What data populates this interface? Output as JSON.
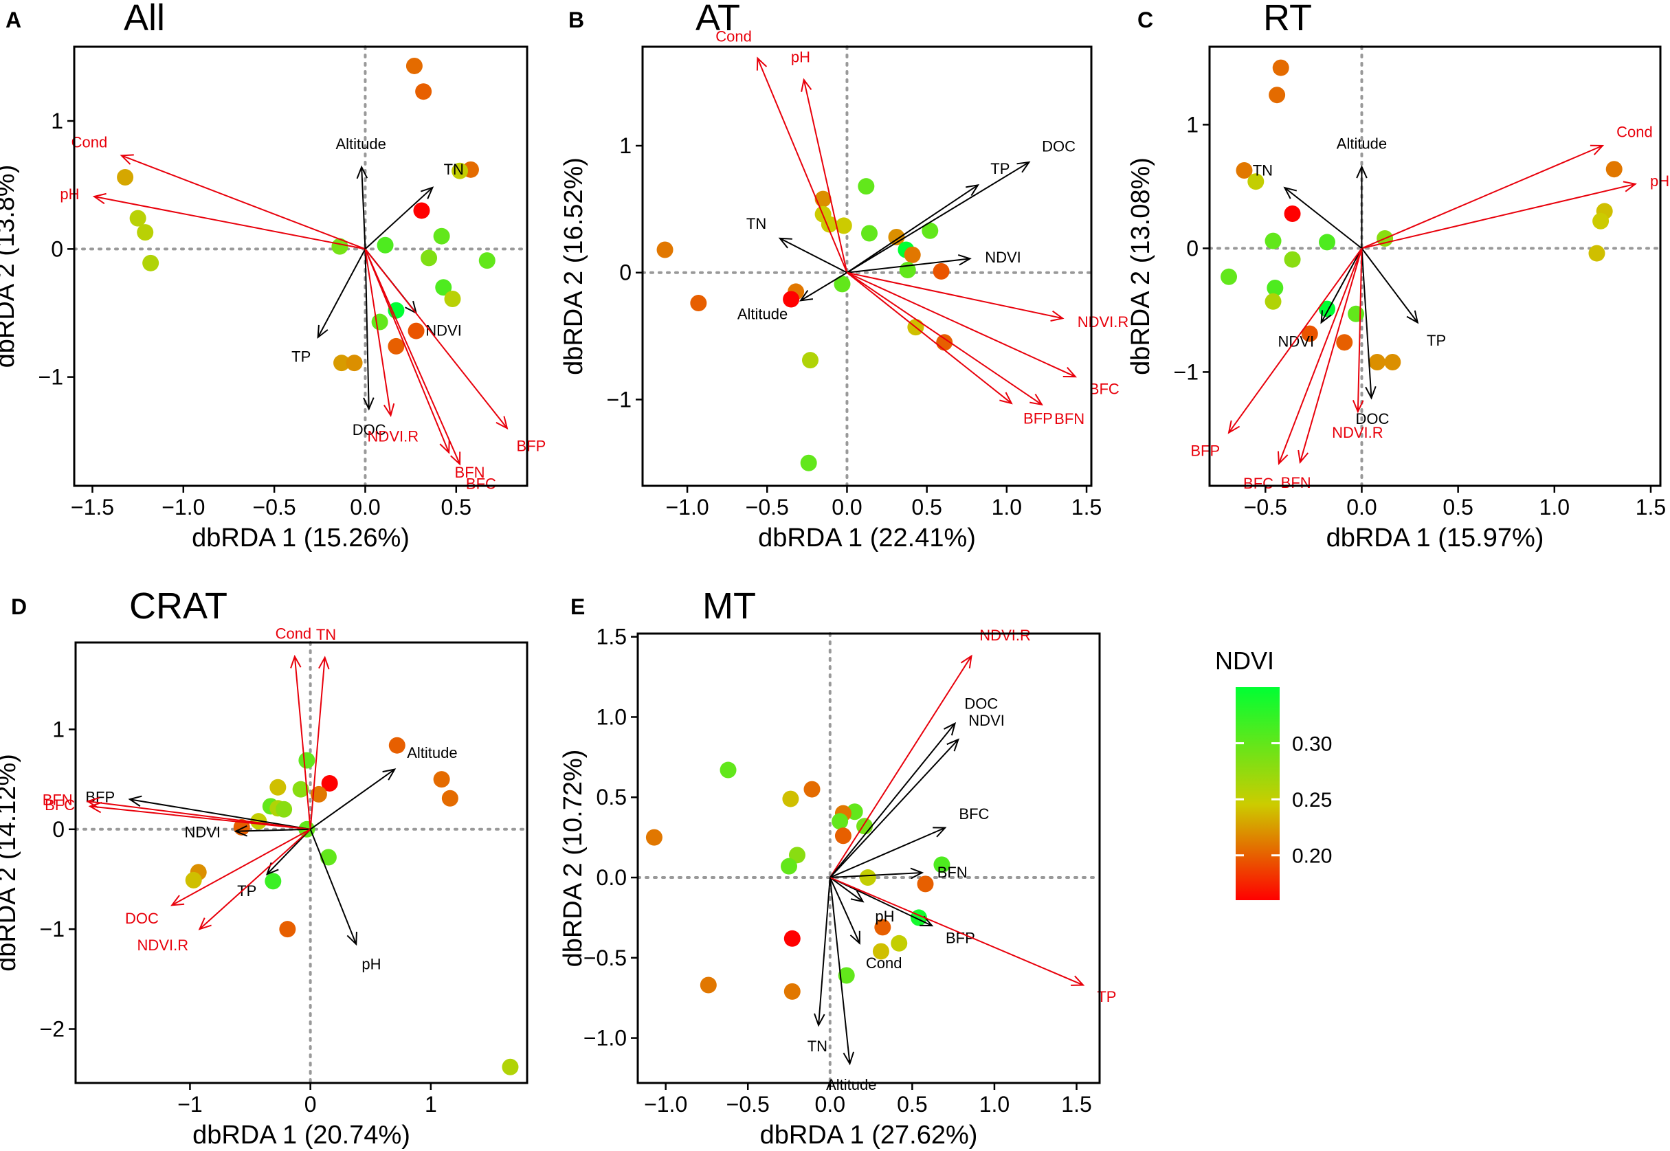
{
  "colorbar": {
    "title": "NDVI",
    "min": 0.16,
    "max": 0.35,
    "ticks": [
      0.2,
      0.25,
      0.3
    ],
    "tick_labels": [
      "0.20",
      "0.25",
      "0.30"
    ],
    "low_color": "#ff0000",
    "mid_color": "#cccc00",
    "high_color": "#00ff33"
  },
  "colors": {
    "env_arrow": "#000000",
    "response_arrow": "#e8000b",
    "frame": "#000000",
    "zero_line": "#999999"
  },
  "chart_data": [
    {
      "panel_letter": "A",
      "title": "All",
      "type": "scatter",
      "xlabel": "dbRDA 1 (15.26%)",
      "ylabel": "dbRDA 2 (13.8%)",
      "xlim": [
        -1.6,
        0.89
      ],
      "ylim": [
        -1.85,
        1.58
      ],
      "xticks": [
        -1.5,
        -1.0,
        -0.5,
        0.0,
        0.5
      ],
      "xtick_labels": [
        "−1.5",
        "−1.0",
        "−0.5",
        "0.0",
        "0.5"
      ],
      "yticks": [
        -1,
        0,
        1
      ],
      "ytick_labels": [
        "−1",
        "0",
        "1"
      ],
      "vectors": [
        {
          "label": "Cond",
          "x": -1.34,
          "y": 0.73,
          "group": "response"
        },
        {
          "label": "pH",
          "x": -1.49,
          "y": 0.41,
          "group": "response"
        },
        {
          "label": "Altitude",
          "x": -0.02,
          "y": 0.64,
          "group": "env"
        },
        {
          "label": "TN",
          "x": 0.37,
          "y": 0.48,
          "group": "env"
        },
        {
          "label": "NDVI",
          "x": 0.28,
          "y": -0.5,
          "group": "env"
        },
        {
          "label": "TP",
          "x": -0.26,
          "y": -0.69,
          "group": "env"
        },
        {
          "label": "DOC",
          "x": 0.02,
          "y": -1.25,
          "group": "env"
        },
        {
          "label": "NDVI.R",
          "x": 0.14,
          "y": -1.3,
          "group": "response"
        },
        {
          "label": "BFP",
          "x": 0.78,
          "y": -1.4,
          "group": "response"
        },
        {
          "label": "BFN",
          "x": 0.46,
          "y": -1.59,
          "group": "response"
        },
        {
          "label": "BFC",
          "x": 0.52,
          "y": -1.68,
          "group": "response"
        }
      ],
      "points": [
        {
          "x": 0.27,
          "y": 1.43,
          "ndvi": 0.205
        },
        {
          "x": 0.32,
          "y": 1.23,
          "ndvi": 0.2
        },
        {
          "x": 0.58,
          "y": 0.62,
          "ndvi": 0.205
        },
        {
          "x": 0.52,
          "y": 0.61,
          "ndvi": 0.25
        },
        {
          "x": -1.32,
          "y": 0.56,
          "ndvi": 0.23
        },
        {
          "x": 0.31,
          "y": 0.3,
          "ndvi": 0.16
        },
        {
          "x": -1.25,
          "y": 0.24,
          "ndvi": 0.255
        },
        {
          "x": -1.21,
          "y": 0.13,
          "ndvi": 0.255
        },
        {
          "x": 0.42,
          "y": 0.1,
          "ndvi": 0.3
        },
        {
          "x": -0.14,
          "y": 0.02,
          "ndvi": 0.29
        },
        {
          "x": 0.11,
          "y": 0.03,
          "ndvi": 0.31
        },
        {
          "x": -1.18,
          "y": -0.11,
          "ndvi": 0.26
        },
        {
          "x": 0.35,
          "y": -0.07,
          "ndvi": 0.285
        },
        {
          "x": 0.67,
          "y": -0.09,
          "ndvi": 0.3
        },
        {
          "x": 0.43,
          "y": -0.3,
          "ndvi": 0.31
        },
        {
          "x": 0.48,
          "y": -0.39,
          "ndvi": 0.255
        },
        {
          "x": 0.17,
          "y": -0.48,
          "ndvi": 0.35
        },
        {
          "x": 0.08,
          "y": -0.57,
          "ndvi": 0.3
        },
        {
          "x": 0.28,
          "y": -0.64,
          "ndvi": 0.195
        },
        {
          "x": 0.17,
          "y": -0.76,
          "ndvi": 0.2
        },
        {
          "x": -0.13,
          "y": -0.89,
          "ndvi": 0.225
        },
        {
          "x": -0.06,
          "y": -0.89,
          "ndvi": 0.22
        }
      ]
    },
    {
      "panel_letter": "B",
      "title": "AT",
      "type": "scatter",
      "xlabel": "dbRDA 1 (22.41%)",
      "ylabel": "dbRDA 2 (16.52%)",
      "xlim": [
        -1.28,
        1.53
      ],
      "ylim": [
        -1.68,
        1.78
      ],
      "xticks": [
        -1.0,
        -0.5,
        0.0,
        0.5,
        1.0,
        1.5
      ],
      "xtick_labels": [
        "−1.0",
        "−0.5",
        "0.0",
        "0.5",
        "1.0",
        "1.5"
      ],
      "yticks": [
        -1,
        0,
        1
      ],
      "ytick_labels": [
        "−1",
        "0",
        "1"
      ],
      "vectors": [
        {
          "label": "Cond",
          "x": -0.56,
          "y": 1.69,
          "group": "response"
        },
        {
          "label": "pH",
          "x": -0.27,
          "y": 1.52,
          "group": "response"
        },
        {
          "label": "DOC",
          "x": 1.14,
          "y": 0.87,
          "group": "env"
        },
        {
          "label": "TP",
          "x": 0.82,
          "y": 0.69,
          "group": "env"
        },
        {
          "label": "TN",
          "x": -0.42,
          "y": 0.27,
          "group": "env"
        },
        {
          "label": "NDVI",
          "x": 0.77,
          "y": 0.11,
          "group": "env"
        },
        {
          "label": "Altitude",
          "x": -0.29,
          "y": -0.22,
          "group": "env"
        },
        {
          "label": "NDVI.R",
          "x": 1.35,
          "y": -0.36,
          "group": "response"
        },
        {
          "label": "BFC",
          "x": 1.43,
          "y": -0.82,
          "group": "response"
        },
        {
          "label": "BFN",
          "x": 1.22,
          "y": -1.04,
          "group": "response"
        },
        {
          "label": "BFP",
          "x": 1.03,
          "y": -1.03,
          "group": "response"
        }
      ],
      "points": [
        {
          "x": 0.12,
          "y": 0.68,
          "ndvi": 0.3
        },
        {
          "x": -0.15,
          "y": 0.58,
          "ndvi": 0.22
        },
        {
          "x": -0.15,
          "y": 0.46,
          "ndvi": 0.245
        },
        {
          "x": -0.02,
          "y": 0.37,
          "ndvi": 0.245
        },
        {
          "x": -0.11,
          "y": 0.38,
          "ndvi": 0.245
        },
        {
          "x": 0.14,
          "y": 0.31,
          "ndvi": 0.3
        },
        {
          "x": 0.52,
          "y": 0.33,
          "ndvi": 0.3
        },
        {
          "x": 0.31,
          "y": 0.28,
          "ndvi": 0.22
        },
        {
          "x": 0.37,
          "y": 0.18,
          "ndvi": 0.35
        },
        {
          "x": 0.41,
          "y": 0.14,
          "ndvi": 0.21
        },
        {
          "x": -1.14,
          "y": 0.18,
          "ndvi": 0.21
        },
        {
          "x": 0.38,
          "y": 0.02,
          "ndvi": 0.3
        },
        {
          "x": 0.59,
          "y": 0.01,
          "ndvi": 0.195
        },
        {
          "x": -0.03,
          "y": -0.09,
          "ndvi": 0.3
        },
        {
          "x": -0.32,
          "y": -0.15,
          "ndvi": 0.21
        },
        {
          "x": -0.35,
          "y": -0.21,
          "ndvi": 0.16
        },
        {
          "x": -0.93,
          "y": -0.24,
          "ndvi": 0.2
        },
        {
          "x": 0.43,
          "y": -0.43,
          "ndvi": 0.24
        },
        {
          "x": 0.61,
          "y": -0.55,
          "ndvi": 0.2
        },
        {
          "x": -0.23,
          "y": -0.69,
          "ndvi": 0.26
        },
        {
          "x": -0.24,
          "y": -1.5,
          "ndvi": 0.3
        }
      ]
    },
    {
      "panel_letter": "C",
      "title": "RT",
      "type": "scatter",
      "xlabel": "dbRDA 1 (15.97%)",
      "ylabel": "dbRDA 2 (13.08%)",
      "xlim": [
        -0.79,
        1.55
      ],
      "ylim": [
        -1.92,
        1.63
      ],
      "xticks": [
        -0.5,
        0.0,
        0.5,
        1.0,
        1.5
      ],
      "xtick_labels": [
        "−0.5",
        "0.0",
        "0.5",
        "1.0",
        "1.5"
      ],
      "yticks": [
        -1,
        0,
        1
      ],
      "ytick_labels": [
        "−1",
        "0",
        "1"
      ],
      "vectors": [
        {
          "label": "Cond",
          "x": 1.25,
          "y": 0.83,
          "group": "response"
        },
        {
          "label": "pH",
          "x": 1.42,
          "y": 0.52,
          "group": "response"
        },
        {
          "label": "Altitude",
          "x": 0.0,
          "y": 0.66,
          "group": "env"
        },
        {
          "label": "TN",
          "x": -0.4,
          "y": 0.49,
          "group": "env"
        },
        {
          "label": "TP",
          "x": 0.29,
          "y": -0.6,
          "group": "env"
        },
        {
          "label": "NDVI",
          "x": -0.21,
          "y": -0.6,
          "group": "env"
        },
        {
          "label": "DOC",
          "x": 0.05,
          "y": -1.21,
          "group": "env"
        },
        {
          "label": "NDVI.R",
          "x": -0.02,
          "y": -1.32,
          "group": "response"
        },
        {
          "label": "BFP",
          "x": -0.69,
          "y": -1.49,
          "group": "response"
        },
        {
          "label": "BFC",
          "x": -0.43,
          "y": -1.74,
          "group": "response"
        },
        {
          "label": "BFN",
          "x": -0.32,
          "y": -1.73,
          "group": "response"
        }
      ],
      "points": [
        {
          "x": -0.42,
          "y": 1.46,
          "ndvi": 0.205
        },
        {
          "x": -0.44,
          "y": 1.24,
          "ndvi": 0.205
        },
        {
          "x": -0.61,
          "y": 0.63,
          "ndvi": 0.21
        },
        {
          "x": -0.55,
          "y": 0.54,
          "ndvi": 0.25
        },
        {
          "x": 1.31,
          "y": 0.64,
          "ndvi": 0.21
        },
        {
          "x": 1.26,
          "y": 0.3,
          "ndvi": 0.24
        },
        {
          "x": 1.24,
          "y": 0.22,
          "ndvi": 0.245
        },
        {
          "x": -0.36,
          "y": 0.28,
          "ndvi": 0.16
        },
        {
          "x": 0.12,
          "y": 0.08,
          "ndvi": 0.28
        },
        {
          "x": -0.46,
          "y": 0.06,
          "ndvi": 0.3
        },
        {
          "x": -0.18,
          "y": 0.05,
          "ndvi": 0.31
        },
        {
          "x": 1.22,
          "y": -0.04,
          "ndvi": 0.24
        },
        {
          "x": -0.36,
          "y": -0.09,
          "ndvi": 0.28
        },
        {
          "x": -0.69,
          "y": -0.23,
          "ndvi": 0.3
        },
        {
          "x": -0.45,
          "y": -0.32,
          "ndvi": 0.31
        },
        {
          "x": -0.46,
          "y": -0.43,
          "ndvi": 0.26
        },
        {
          "x": -0.18,
          "y": -0.49,
          "ndvi": 0.35
        },
        {
          "x": -0.03,
          "y": -0.53,
          "ndvi": 0.3
        },
        {
          "x": -0.27,
          "y": -0.69,
          "ndvi": 0.195
        },
        {
          "x": -0.09,
          "y": -0.76,
          "ndvi": 0.2
        },
        {
          "x": 0.08,
          "y": -0.92,
          "ndvi": 0.22
        },
        {
          "x": 0.16,
          "y": -0.92,
          "ndvi": 0.22
        }
      ]
    },
    {
      "panel_letter": "D",
      "title": "CRAT",
      "type": "scatter",
      "xlabel": "dbRDA 1 (20.74%)",
      "ylabel": "dbRDA 2 (14.12%)",
      "xlim": [
        -1.95,
        1.8
      ],
      "ylim": [
        -2.54,
        1.87
      ],
      "xticks": [
        -1,
        0,
        1
      ],
      "xtick_labels": [
        "−1",
        "0",
        "1"
      ],
      "yticks": [
        -2,
        -1,
        0,
        1
      ],
      "ytick_labels": [
        "−2",
        "−1",
        "0",
        "1"
      ],
      "vectors": [
        {
          "label": "Cond",
          "x": -0.13,
          "y": 1.73,
          "group": "response"
        },
        {
          "label": "TN",
          "x": 0.12,
          "y": 1.72,
          "group": "response"
        },
        {
          "label": "Altitude",
          "x": 0.7,
          "y": 0.6,
          "group": "env"
        },
        {
          "label": "BFP",
          "x": -1.5,
          "y": 0.3,
          "group": "env"
        },
        {
          "label": "BFC",
          "x": -1.83,
          "y": 0.23,
          "group": "response"
        },
        {
          "label": "BFN",
          "x": -1.85,
          "y": 0.28,
          "group": "response"
        },
        {
          "label": "NDVI",
          "x": -0.62,
          "y": -0.02,
          "group": "env"
        },
        {
          "label": "TP",
          "x": -0.36,
          "y": -0.45,
          "group": "env"
        },
        {
          "label": "DOC",
          "x": -1.15,
          "y": -0.76,
          "group": "response"
        },
        {
          "label": "NDVI.R",
          "x": -0.92,
          "y": -1.0,
          "group": "response"
        },
        {
          "label": "pH",
          "x": 0.38,
          "y": -1.15,
          "group": "env"
        }
      ],
      "points": [
        {
          "x": 0.72,
          "y": 0.84,
          "ndvi": 0.2
        },
        {
          "x": -0.03,
          "y": 0.69,
          "ndvi": 0.3
        },
        {
          "x": 1.09,
          "y": 0.5,
          "ndvi": 0.205
        },
        {
          "x": 0.16,
          "y": 0.46,
          "ndvi": 0.16
        },
        {
          "x": -0.27,
          "y": 0.42,
          "ndvi": 0.24
        },
        {
          "x": -0.08,
          "y": 0.4,
          "ndvi": 0.28
        },
        {
          "x": 0.07,
          "y": 0.35,
          "ndvi": 0.21
        },
        {
          "x": 1.16,
          "y": 0.31,
          "ndvi": 0.205
        },
        {
          "x": -0.33,
          "y": 0.23,
          "ndvi": 0.3
        },
        {
          "x": -0.27,
          "y": 0.21,
          "ndvi": 0.26
        },
        {
          "x": -0.22,
          "y": 0.2,
          "ndvi": 0.28
        },
        {
          "x": -0.43,
          "y": 0.08,
          "ndvi": 0.25
        },
        {
          "x": -0.57,
          "y": 0.02,
          "ndvi": 0.2
        },
        {
          "x": -0.03,
          "y": 0.0,
          "ndvi": 0.3
        },
        {
          "x": 0.15,
          "y": -0.28,
          "ndvi": 0.3
        },
        {
          "x": -0.93,
          "y": -0.43,
          "ndvi": 0.22
        },
        {
          "x": -0.97,
          "y": -0.51,
          "ndvi": 0.24
        },
        {
          "x": -0.31,
          "y": -0.52,
          "ndvi": 0.32
        },
        {
          "x": -0.19,
          "y": -1.0,
          "ndvi": 0.2
        },
        {
          "x": 1.66,
          "y": -2.38,
          "ndvi": 0.26
        }
      ]
    },
    {
      "panel_letter": "E",
      "title": "MT",
      "type": "scatter",
      "xlabel": "dbRDA 1 (27.62%)",
      "ylabel": "dbRDA 2 (10.72%)",
      "xlim": [
        -1.17,
        1.64
      ],
      "ylim": [
        -1.28,
        1.52
      ],
      "xticks": [
        -1.0,
        -0.5,
        0.0,
        0.5,
        1.0,
        1.5
      ],
      "xtick_labels": [
        "−1.0",
        "−0.5",
        "0.0",
        "0.5",
        "1.0",
        "1.5"
      ],
      "yticks": [
        -1.0,
        -0.5,
        0.0,
        0.5,
        1.0,
        1.5
      ],
      "ytick_labels": [
        "−1.0",
        "−0.5",
        "0.0",
        "0.5",
        "1.0",
        "1.5"
      ],
      "vectors": [
        {
          "label": "NDVI.R",
          "x": 0.86,
          "y": 1.38,
          "group": "response"
        },
        {
          "label": "DOC",
          "x": 0.76,
          "y": 0.96,
          "group": "env"
        },
        {
          "label": "NDVI",
          "x": 0.78,
          "y": 0.86,
          "group": "env"
        },
        {
          "label": "BFC",
          "x": 0.7,
          "y": 0.31,
          "group": "env"
        },
        {
          "label": "BFN",
          "x": 0.56,
          "y": 0.03,
          "group": "env"
        },
        {
          "label": "pH",
          "x": 0.2,
          "y": -0.15,
          "group": "env"
        },
        {
          "label": "BFP",
          "x": 0.62,
          "y": -0.3,
          "group": "env"
        },
        {
          "label": "Cond",
          "x": 0.18,
          "y": -0.41,
          "group": "env"
        },
        {
          "label": "TP",
          "x": 1.54,
          "y": -0.67,
          "group": "response"
        },
        {
          "label": "TN",
          "x": -0.07,
          "y": -0.92,
          "group": "env"
        },
        {
          "label": "Altitude",
          "x": 0.12,
          "y": -1.16,
          "group": "env"
        }
      ],
      "points": [
        {
          "x": -0.62,
          "y": 0.67,
          "ndvi": 0.3
        },
        {
          "x": -0.11,
          "y": 0.55,
          "ndvi": 0.205
        },
        {
          "x": -0.24,
          "y": 0.49,
          "ndvi": 0.24
        },
        {
          "x": 0.15,
          "y": 0.41,
          "ndvi": 0.3
        },
        {
          "x": 0.08,
          "y": 0.4,
          "ndvi": 0.21
        },
        {
          "x": 0.06,
          "y": 0.35,
          "ndvi": 0.3
        },
        {
          "x": 0.21,
          "y": 0.32,
          "ndvi": 0.29
        },
        {
          "x": 0.08,
          "y": 0.26,
          "ndvi": 0.2
        },
        {
          "x": -1.07,
          "y": 0.25,
          "ndvi": 0.21
        },
        {
          "x": -0.2,
          "y": 0.14,
          "ndvi": 0.28
        },
        {
          "x": 0.68,
          "y": 0.08,
          "ndvi": 0.31
        },
        {
          "x": -0.25,
          "y": 0.07,
          "ndvi": 0.3
        },
        {
          "x": 0.23,
          "y": 0.0,
          "ndvi": 0.25
        },
        {
          "x": 0.58,
          "y": -0.04,
          "ndvi": 0.2
        },
        {
          "x": 0.54,
          "y": -0.25,
          "ndvi": 0.34
        },
        {
          "x": 0.32,
          "y": -0.31,
          "ndvi": 0.2
        },
        {
          "x": -0.23,
          "y": -0.38,
          "ndvi": 0.16
        },
        {
          "x": 0.42,
          "y": -0.41,
          "ndvi": 0.25
        },
        {
          "x": 0.31,
          "y": -0.46,
          "ndvi": 0.24
        },
        {
          "x": 0.1,
          "y": -0.61,
          "ndvi": 0.3
        },
        {
          "x": -0.74,
          "y": -0.67,
          "ndvi": 0.21
        },
        {
          "x": -0.23,
          "y": -0.71,
          "ndvi": 0.21
        }
      ]
    }
  ]
}
